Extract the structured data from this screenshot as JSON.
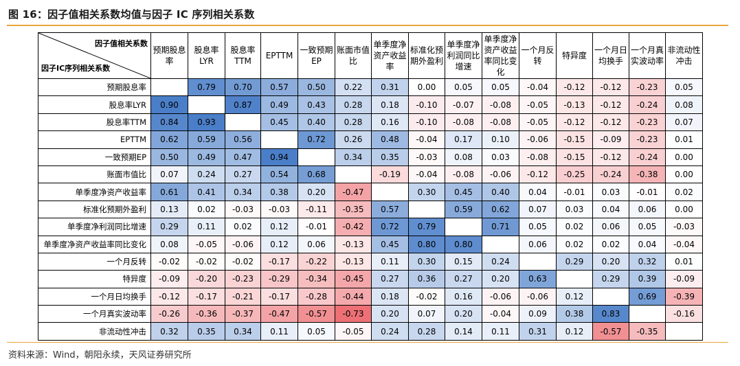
{
  "title": "图 16：因子值相关系数均值与因子 IC 序列相关系数",
  "source": "资料来源：Wind，朝阳永续，天风证券研究所",
  "table": {
    "corner_top_right": "因子值相关系数",
    "corner_bottom_left": "因子IC序列相关系数",
    "columns": [
      "预期股息率",
      "股息率LYR",
      "股息率TTM",
      "EPTTM",
      "一致预期EP",
      "账面市值比",
      "单季度净资产收益率",
      "标准化预期外盈利",
      "单季度净利润同比增速",
      "单季度净资产收益率同比变化",
      "一个月反转",
      "特异度",
      "一个月日均换手",
      "一个月真实波动率",
      "非流动性冲击"
    ],
    "rows": [
      {
        "label": "预期股息率",
        "values": [
          "",
          "0.79",
          "0.70",
          "0.57",
          "0.50",
          "0.22",
          "0.31",
          "0.00",
          "0.05",
          "0.05",
          "-0.04",
          "-0.12",
          "-0.12",
          "-0.23",
          "0.05"
        ]
      },
      {
        "label": "股息率LYR",
        "values": [
          "0.90",
          "",
          "0.87",
          "0.49",
          "0.43",
          "0.28",
          "0.18",
          "-0.10",
          "-0.07",
          "-0.08",
          "-0.05",
          "-0.13",
          "-0.12",
          "-0.24",
          "0.08"
        ]
      },
      {
        "label": "股息率TTM",
        "values": [
          "0.84",
          "0.93",
          "",
          "0.45",
          "0.40",
          "0.28",
          "0.16",
          "-0.10",
          "-0.08",
          "-0.08",
          "-0.05",
          "-0.12",
          "-0.12",
          "-0.23",
          "0.07"
        ]
      },
      {
        "label": "EPTTM",
        "values": [
          "0.62",
          "0.59",
          "0.56",
          "",
          "0.72",
          "0.26",
          "0.48",
          "-0.04",
          "0.17",
          "0.10",
          "-0.06",
          "-0.15",
          "-0.09",
          "-0.23",
          "0.01"
        ]
      },
      {
        "label": "一致预期EP",
        "values": [
          "0.50",
          "0.49",
          "0.47",
          "0.94",
          "",
          "0.34",
          "0.35",
          "-0.03",
          "0.08",
          "0.03",
          "-0.08",
          "-0.15",
          "-0.12",
          "-0.24",
          "0.00"
        ]
      },
      {
        "label": "账面市值比",
        "values": [
          "0.07",
          "0.24",
          "0.27",
          "0.54",
          "0.68",
          "",
          "-0.19",
          "-0.04",
          "-0.08",
          "-0.06",
          "-0.12",
          "-0.25",
          "-0.24",
          "-0.38",
          "0.00"
        ]
      },
      {
        "label": "单季度净资产收益率",
        "values": [
          "0.61",
          "0.41",
          "0.34",
          "0.38",
          "0.20",
          "-0.47",
          "",
          "0.30",
          "0.45",
          "0.40",
          "0.04",
          "-0.01",
          "0.03",
          "-0.01",
          "0.02"
        ]
      },
      {
        "label": "标准化预期外盈利",
        "values": [
          "0.13",
          "0.02",
          "-0.03",
          "-0.03",
          "-0.11",
          "-0.35",
          "0.57",
          "",
          "0.59",
          "0.62",
          "0.07",
          "0.03",
          "0.04",
          "0.06",
          "0.00"
        ]
      },
      {
        "label": "单季度净利润同比增速",
        "values": [
          "0.29",
          "0.11",
          "0.02",
          "0.12",
          "-0.01",
          "-0.42",
          "0.72",
          "0.79",
          "",
          "0.71",
          "0.05",
          "0.02",
          "0.06",
          "0.05",
          "-0.03"
        ]
      },
      {
        "label": "单季度净资产收益率同比变化",
        "values": [
          "0.08",
          "-0.05",
          "-0.06",
          "0.12",
          "0.06",
          "-0.13",
          "0.45",
          "0.80",
          "0.80",
          "",
          "0.06",
          "0.02",
          "0.02",
          "0.04",
          "-0.04"
        ]
      },
      {
        "label": "一个月反转",
        "values": [
          "-0.02",
          "-0.02",
          "-0.02",
          "-0.17",
          "-0.22",
          "-0.13",
          "0.11",
          "0.30",
          "0.15",
          "0.24",
          "",
          "0.29",
          "0.20",
          "0.32",
          "0.01"
        ]
      },
      {
        "label": "特异度",
        "values": [
          "-0.09",
          "-0.20",
          "-0.23",
          "-0.29",
          "-0.34",
          "-0.45",
          "0.27",
          "0.36",
          "0.27",
          "0.20",
          "0.63",
          "",
          "0.29",
          "0.39",
          "-0.09"
        ]
      },
      {
        "label": "一个月日均换手",
        "values": [
          "-0.12",
          "-0.17",
          "-0.21",
          "-0.17",
          "-0.28",
          "-0.44",
          "0.18",
          "-0.02",
          "0.16",
          "-0.06",
          "-0.06",
          "0.12",
          "",
          "0.69",
          "-0.39"
        ]
      },
      {
        "label": "一个月真实波动率",
        "values": [
          "-0.26",
          "-0.36",
          "-0.37",
          "-0.47",
          "-0.57",
          "-0.73",
          "0.20",
          "0.07",
          "0.20",
          "-0.04",
          "0.09",
          "0.38",
          "0.83",
          "",
          "-0.16"
        ]
      },
      {
        "label": "非流动性冲击",
        "values": [
          "0.32",
          "0.35",
          "0.34",
          "0.11",
          "0.05",
          "-0.05",
          "0.24",
          "0.28",
          "0.14",
          "0.11",
          "0.31",
          "0.12",
          "-0.57",
          "-0.35",
          ""
        ]
      }
    ]
  },
  "colors": {
    "positive": "#4a7ec8",
    "negative": "#e84f55",
    "rule": "#e8a33d"
  }
}
